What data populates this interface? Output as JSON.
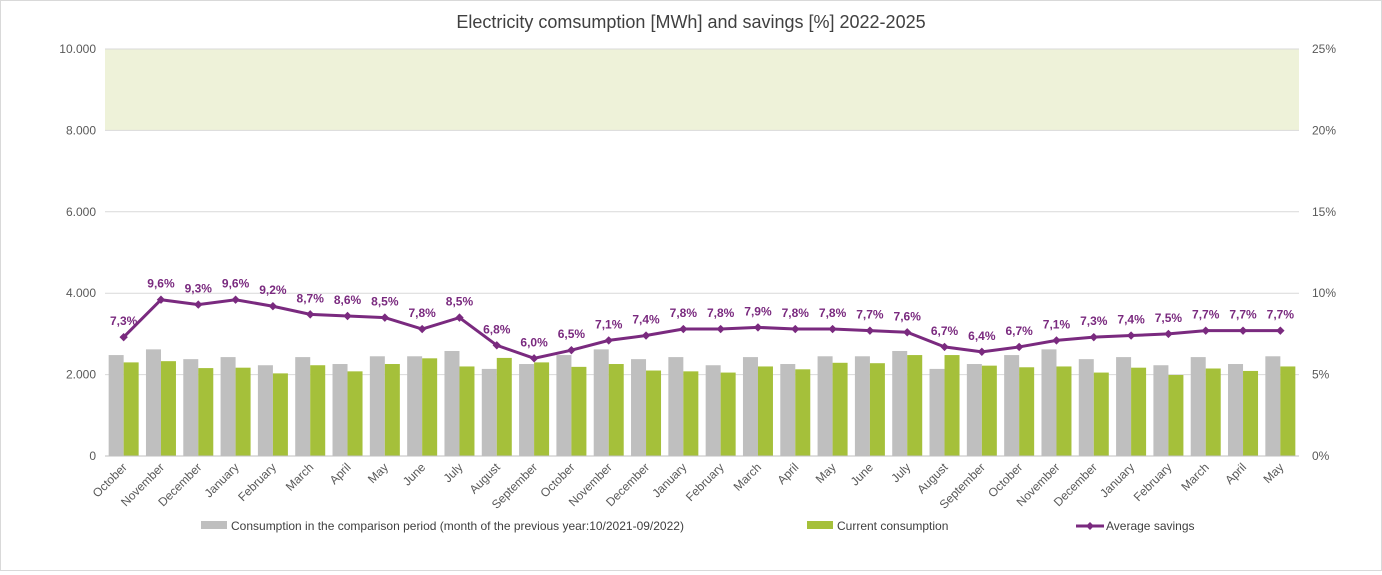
{
  "chart_data": {
    "type": "bar",
    "title": "Electricity comsumption [MWh] and savings [%] 2022-2025",
    "xlabel": "",
    "ylabel": "",
    "ylim": [
      0,
      10000
    ],
    "y2lim": [
      0,
      25
    ],
    "y_ticks": [
      "0",
      "2.000",
      "4.000",
      "6.000",
      "8.000",
      "10.000"
    ],
    "y2_ticks": [
      "0%",
      "5%",
      "10%",
      "15%",
      "20%",
      "25%"
    ],
    "grid": true,
    "legend_position": "bottom",
    "shaded_band": {
      "from": 8000,
      "to": 10000,
      "color": "#eef2d9"
    },
    "categories": [
      "October",
      "November",
      "December",
      "January",
      "February",
      "March",
      "April",
      "May",
      "June",
      "July",
      "August",
      "September",
      "October",
      "November",
      "December",
      "January",
      "February",
      "March",
      "April",
      "May",
      "June",
      "July",
      "August",
      "September",
      "October",
      "November",
      "December",
      "January",
      "February",
      "March",
      "April",
      "May"
    ],
    "series": [
      {
        "name": "Consumption in the comparison period (month of the previous year:10/2021-09/2022)",
        "type": "bar",
        "axis": "left",
        "color": "#bfbfbf",
        "values": [
          2480,
          2620,
          2380,
          2430,
          2230,
          2430,
          2260,
          2450,
          2450,
          2580,
          2140,
          2260,
          2480,
          2620,
          2380,
          2430,
          2230,
          2430,
          2260,
          2450,
          2450,
          2580,
          2140,
          2260,
          2480,
          2620,
          2380,
          2430,
          2230,
          2430,
          2260,
          2450
        ]
      },
      {
        "name": "Current consumption",
        "type": "bar",
        "axis": "left",
        "color": "#a5c03a",
        "values": [
          2300,
          2330,
          2160,
          2170,
          2030,
          2230,
          2080,
          2260,
          2400,
          2200,
          2410,
          2300,
          2190,
          2260,
          2100,
          2080,
          2050,
          2200,
          2130,
          2290,
          2280,
          2480,
          2480,
          2220,
          2180,
          2200,
          2050,
          2170,
          1990,
          2150,
          2090,
          2200
        ]
      },
      {
        "name": "Average savings",
        "type": "line",
        "axis": "right",
        "color": "#7a2a7f",
        "values": [
          7.3,
          9.6,
          9.3,
          9.6,
          9.2,
          8.7,
          8.6,
          8.5,
          7.8,
          8.5,
          6.8,
          6.0,
          6.5,
          7.1,
          7.4,
          7.8,
          7.8,
          7.9,
          7.8,
          7.8,
          7.7,
          7.6,
          6.7,
          6.4,
          6.7,
          7.1,
          7.3,
          7.4,
          7.5,
          7.7,
          7.7,
          7.7
        ],
        "labels": [
          "7,3%",
          "9,6%",
          "9,3%",
          "9,6%",
          "9,2%",
          "8,7%",
          "8,6%",
          "8,5%",
          "7,8%",
          "8,5%",
          "6,8%",
          "6,0%",
          "6,5%",
          "7,1%",
          "7,4%",
          "7,8%",
          "7,8%",
          "7,9%",
          "7,8%",
          "7,8%",
          "7,7%",
          "7,6%",
          "6,7%",
          "6,4%",
          "6,7%",
          "7,1%",
          "7,3%",
          "7,4%",
          "7,5%",
          "7,7%",
          "7,7%",
          "7,7%"
        ]
      }
    ]
  }
}
